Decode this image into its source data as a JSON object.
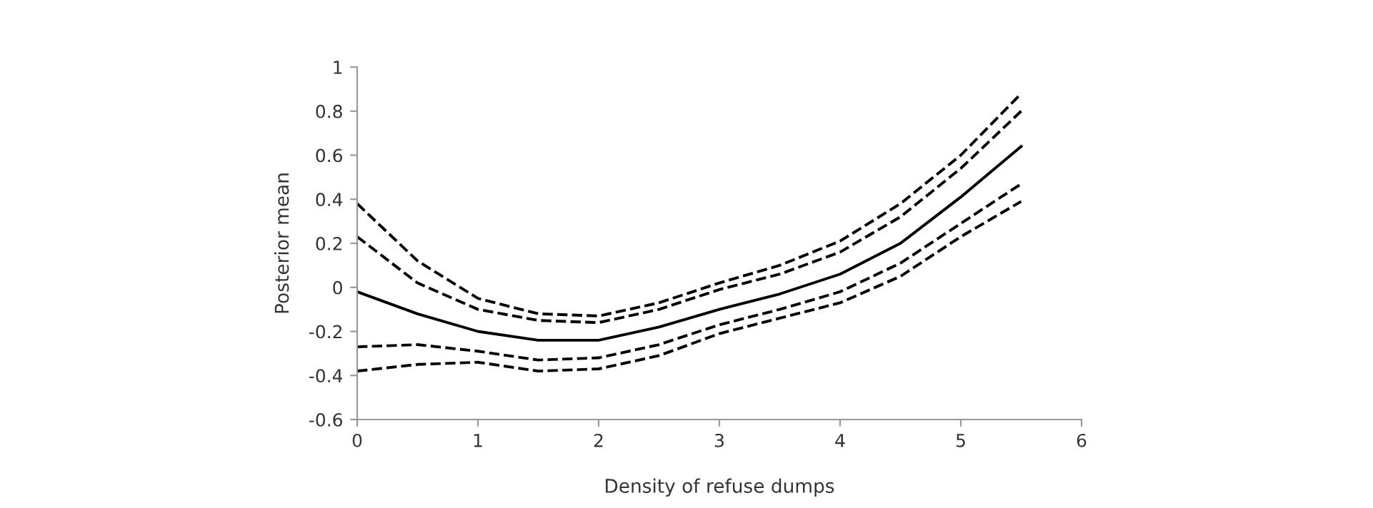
{
  "chart_data": {
    "type": "line",
    "xlabel": "Density of refuse dumps",
    "ylabel": "Posterior mean",
    "x": [
      0,
      0.5,
      1,
      1.5,
      2,
      2.5,
      3,
      3.5,
      4,
      4.5,
      5,
      5.5
    ],
    "xlim": [
      0,
      6
    ],
    "xticks": [
      0,
      1,
      2,
      3,
      4,
      5,
      6
    ],
    "ylim": [
      -0.6,
      1
    ],
    "yticks": [
      -0.6,
      -0.4,
      -0.2,
      0,
      0.2,
      0.4,
      0.6,
      0.8,
      1
    ],
    "grid": false,
    "marker": "none",
    "series": [
      {
        "color": "#000000",
        "line_style": "dashed",
        "values": [
          0.38,
          0.12,
          -0.05,
          -0.12,
          -0.13,
          -0.07,
          0.02,
          0.1,
          0.21,
          0.38,
          0.6,
          0.88
        ]
      },
      {
        "color": "#000000",
        "line_style": "dashed",
        "values": [
          0.23,
          0.02,
          -0.1,
          -0.15,
          -0.16,
          -0.1,
          -0.01,
          0.06,
          0.16,
          0.32,
          0.54,
          0.8
        ]
      },
      {
        "color": "#000000",
        "line_style": "solid",
        "values": [
          -0.02,
          -0.12,
          -0.2,
          -0.24,
          -0.24,
          -0.18,
          -0.1,
          -0.03,
          0.06,
          0.2,
          0.41,
          0.64
        ]
      },
      {
        "color": "#000000",
        "line_style": "dashed",
        "values": [
          -0.27,
          -0.26,
          -0.29,
          -0.33,
          -0.32,
          -0.26,
          -0.17,
          -0.1,
          -0.02,
          0.11,
          0.29,
          0.47
        ]
      },
      {
        "color": "#000000",
        "line_style": "dashed",
        "values": [
          -0.38,
          -0.35,
          -0.34,
          -0.38,
          -0.37,
          -0.31,
          -0.21,
          -0.14,
          -0.07,
          0.05,
          0.23,
          0.39
        ]
      }
    ]
  }
}
